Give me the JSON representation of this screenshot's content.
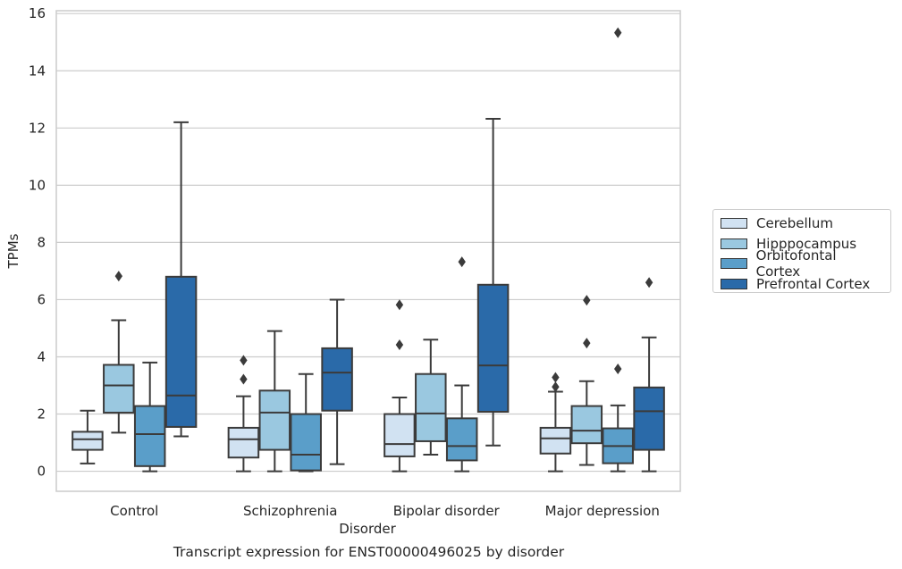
{
  "chart_data": {
    "type": "box",
    "title": "",
    "xlabel": "Disorder",
    "ylabel": "TPMs",
    "caption": "Transcript expression for ENST00000496025 by disorder",
    "ylim": [
      -0.7,
      16.1
    ],
    "yticks": [
      0,
      2,
      4,
      6,
      8,
      10,
      12,
      14,
      16
    ],
    "grid": "horizontal",
    "legend_position": "right",
    "categories": [
      "Control",
      "Schizophrenia",
      "Bipolar disorder",
      "Major depression"
    ],
    "series": [
      {
        "name": "Cerebellum",
        "color": "#d1e2f2",
        "boxes": [
          {
            "min": 0.27,
            "q1": 0.75,
            "median": 1.12,
            "q3": 1.38,
            "max": 2.12,
            "outliers": []
          },
          {
            "min": 0.0,
            "q1": 0.48,
            "median": 1.12,
            "q3": 1.52,
            "max": 2.62,
            "outliers": [
              3.22,
              3.88
            ]
          },
          {
            "min": 0.0,
            "q1": 0.52,
            "median": 0.95,
            "q3": 2.0,
            "max": 2.58,
            "outliers": [
              4.42,
              5.82
            ]
          },
          {
            "min": 0.0,
            "q1": 0.62,
            "median": 1.15,
            "q3": 1.52,
            "max": 2.78,
            "outliers": [
              2.95,
              3.28
            ]
          }
        ]
      },
      {
        "name": "Hipppocampus",
        "color": "#9ac8e0",
        "boxes": [
          {
            "min": 1.35,
            "q1": 2.05,
            "median": 3.0,
            "q3": 3.72,
            "max": 5.28,
            "outliers": [
              6.82
            ]
          },
          {
            "min": 0.0,
            "q1": 0.75,
            "median": 2.05,
            "q3": 2.82,
            "max": 4.9,
            "outliers": []
          },
          {
            "min": 0.58,
            "q1": 1.05,
            "median": 2.02,
            "q3": 3.4,
            "max": 4.6,
            "outliers": []
          },
          {
            "min": 0.22,
            "q1": 0.98,
            "median": 1.42,
            "q3": 2.28,
            "max": 3.15,
            "outliers": [
              4.48,
              5.98
            ]
          }
        ]
      },
      {
        "name": "Orbitofontal Cortex",
        "color": "#5a9ec9",
        "boxes": [
          {
            "min": 0.0,
            "q1": 0.18,
            "median": 1.3,
            "q3": 2.28,
            "max": 3.8,
            "outliers": []
          },
          {
            "min": 0.0,
            "q1": 0.03,
            "median": 0.58,
            "q3": 2.0,
            "max": 3.4,
            "outliers": []
          },
          {
            "min": 0.0,
            "q1": 0.38,
            "median": 0.88,
            "q3": 1.85,
            "max": 3.0,
            "outliers": [
              7.32
            ]
          },
          {
            "min": 0.0,
            "q1": 0.28,
            "median": 0.88,
            "q3": 1.5,
            "max": 2.3,
            "outliers": [
              3.58,
              15.33
            ]
          }
        ]
      },
      {
        "name": "Prefrontal Cortex",
        "color": "#2a6aa9",
        "boxes": [
          {
            "min": 1.22,
            "q1": 1.55,
            "median": 2.65,
            "q3": 6.8,
            "max": 12.2,
            "outliers": []
          },
          {
            "min": 0.25,
            "q1": 2.12,
            "median": 3.45,
            "q3": 4.3,
            "max": 6.0,
            "outliers": []
          },
          {
            "min": 0.9,
            "q1": 2.08,
            "median": 3.7,
            "q3": 6.52,
            "max": 12.32,
            "outliers": []
          },
          {
            "min": 0.0,
            "q1": 0.75,
            "median": 2.1,
            "q3": 2.93,
            "max": 4.68,
            "outliers": [
              6.6
            ]
          }
        ]
      }
    ]
  }
}
